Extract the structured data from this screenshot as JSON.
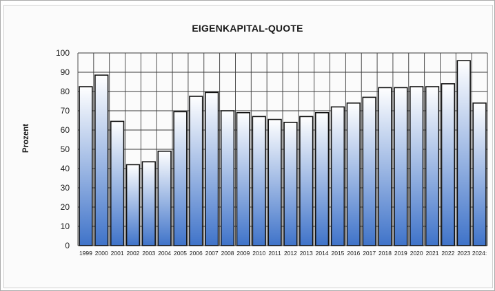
{
  "chart_data": {
    "type": "bar",
    "title": "EIGENKAPITAL-QUOTE",
    "ylabel": "Prozent",
    "xlabel": "",
    "ylim": [
      0,
      100
    ],
    "yticks": [
      0,
      10,
      20,
      30,
      40,
      50,
      60,
      70,
      80,
      90,
      100
    ],
    "grid": true,
    "categories": [
      "1999",
      "2000",
      "2001",
      "2002",
      "2003",
      "2004",
      "2005",
      "2006",
      "2007",
      "2008",
      "2009",
      "2010",
      "2011",
      "2012",
      "2013",
      "2014",
      "2015",
      "2016",
      "2017",
      "2018",
      "2019",
      "2020",
      "2021",
      "2022",
      "2023",
      "2024:"
    ],
    "values": [
      82.5,
      88.5,
      64.5,
      42,
      43.5,
      49,
      69.5,
      77.5,
      79.5,
      70,
      69,
      67,
      65.5,
      64,
      67,
      69,
      72,
      74,
      77,
      82,
      82,
      82.5,
      82.5,
      84,
      96,
      74
    ],
    "colors": {
      "bar_top": "#ffffff",
      "bar_bottom": "#3f73c9",
      "bar_edge": "#111111"
    }
  }
}
